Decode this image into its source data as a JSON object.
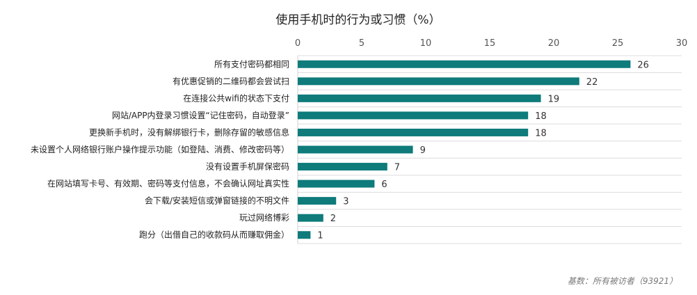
{
  "chart_data": {
    "type": "bar",
    "orientation": "horizontal",
    "title": "使用手机时的行为或习惯（%）",
    "categories": [
      "所有支付密码都相同",
      "有优惠促销的二维码都会尝试扫",
      "在连接公共wifi的状态下支付",
      "网站/APP内登录习惯设置“记住密码，自动登录”",
      "更换新手机时，没有解绑银行卡，删除存留的敏感信息",
      "未设置个人网络银行账户操作提示功能（如登陆、消费、修改密码等）",
      "没有设置手机屏保密码",
      "在网站填写卡号、有效期、密码等支付信息，不会确认网址真实性",
      "会下载/安装短信或弹窗链接的不明文件",
      "玩过网络博彩",
      "跑分（出借自己的收款码从而赚取佣金）"
    ],
    "values": [
      26,
      22,
      19,
      18,
      18,
      9,
      7,
      6,
      3,
      2,
      1
    ],
    "xlim": [
      0,
      30
    ],
    "xticks": [
      "0",
      "5",
      "10",
      "15",
      "20",
      "25",
      "30"
    ],
    "axis_position": "top",
    "grid": true,
    "bar_color": "#0f7b7b",
    "note": "基数：所有被访者（93921）"
  }
}
